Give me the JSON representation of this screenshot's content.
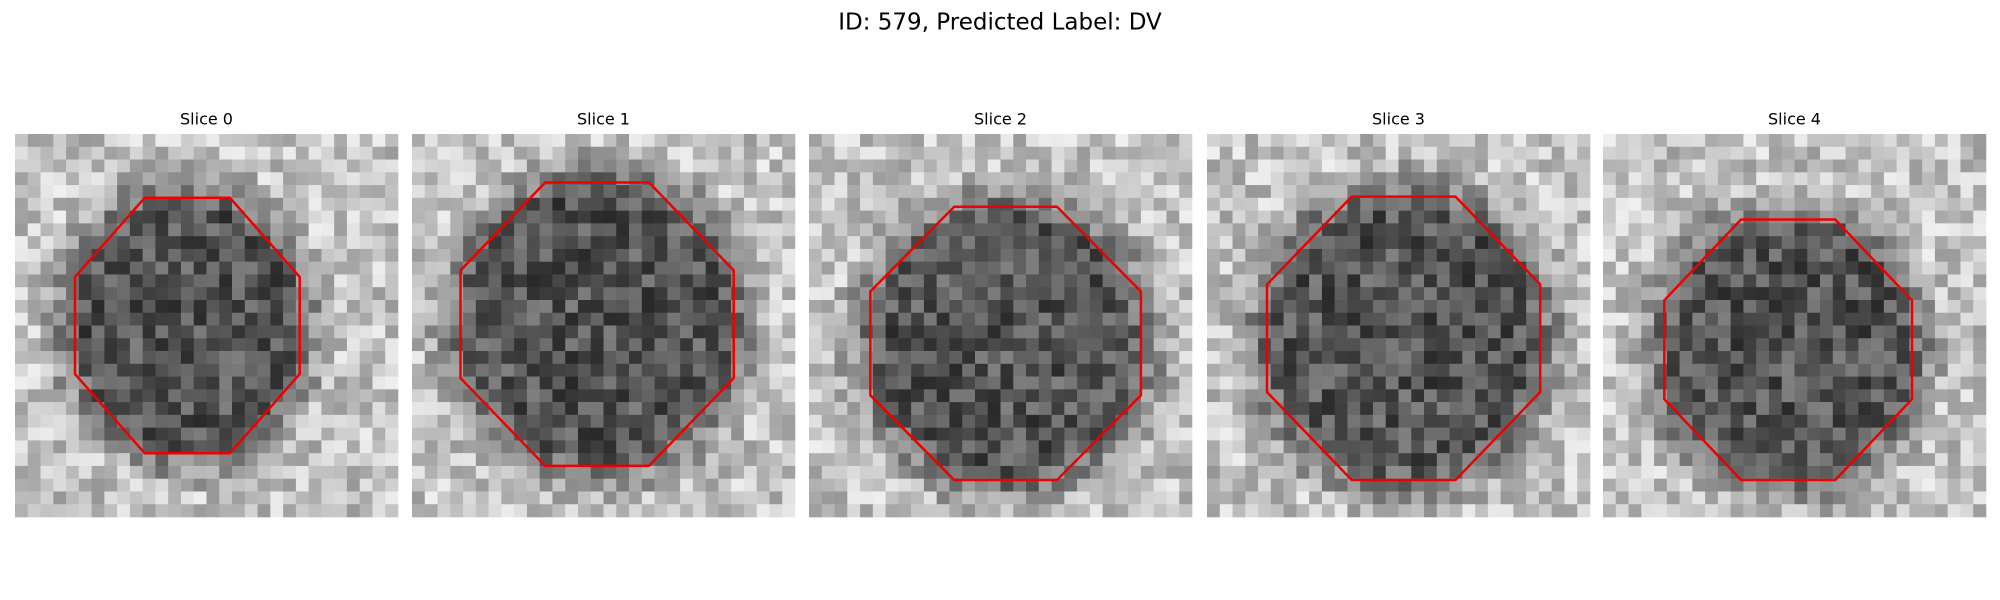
{
  "title": "ID: 579, Predicted Label: DV",
  "panels": [
    {
      "title": "Slice 0"
    },
    {
      "title": "Slice 1"
    },
    {
      "title": "Slice 2"
    },
    {
      "title": "Slice 3"
    },
    {
      "title": "Slice 4"
    }
  ]
}
